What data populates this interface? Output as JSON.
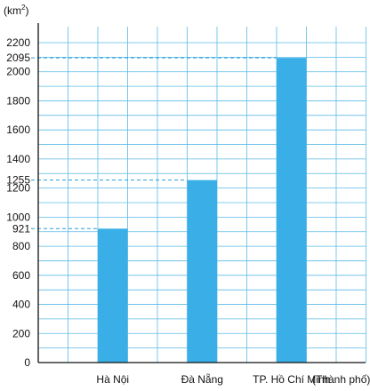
{
  "chart_data": {
    "type": "bar",
    "categories": [
      "Hà Nội",
      "Đà Nẵng",
      "TP. Hồ Chí Minh"
    ],
    "values": [
      921,
      1255,
      2095
    ],
    "ylim": [
      0,
      2200
    ],
    "yticks": [
      0,
      200,
      400,
      600,
      800,
      1000,
      1200,
      1400,
      1600,
      1800,
      2000,
      2200
    ],
    "highlight_ticks": [
      921,
      1255,
      2095
    ],
    "unit_label": "km",
    "unit_superscript": "2",
    "xlabel": "(Thành phố)",
    "grid": true,
    "colors": {
      "bar": "#3aaee6",
      "grid": "#5bbbe6",
      "axis": "#111111",
      "dashed": "#2a9fd8"
    }
  }
}
